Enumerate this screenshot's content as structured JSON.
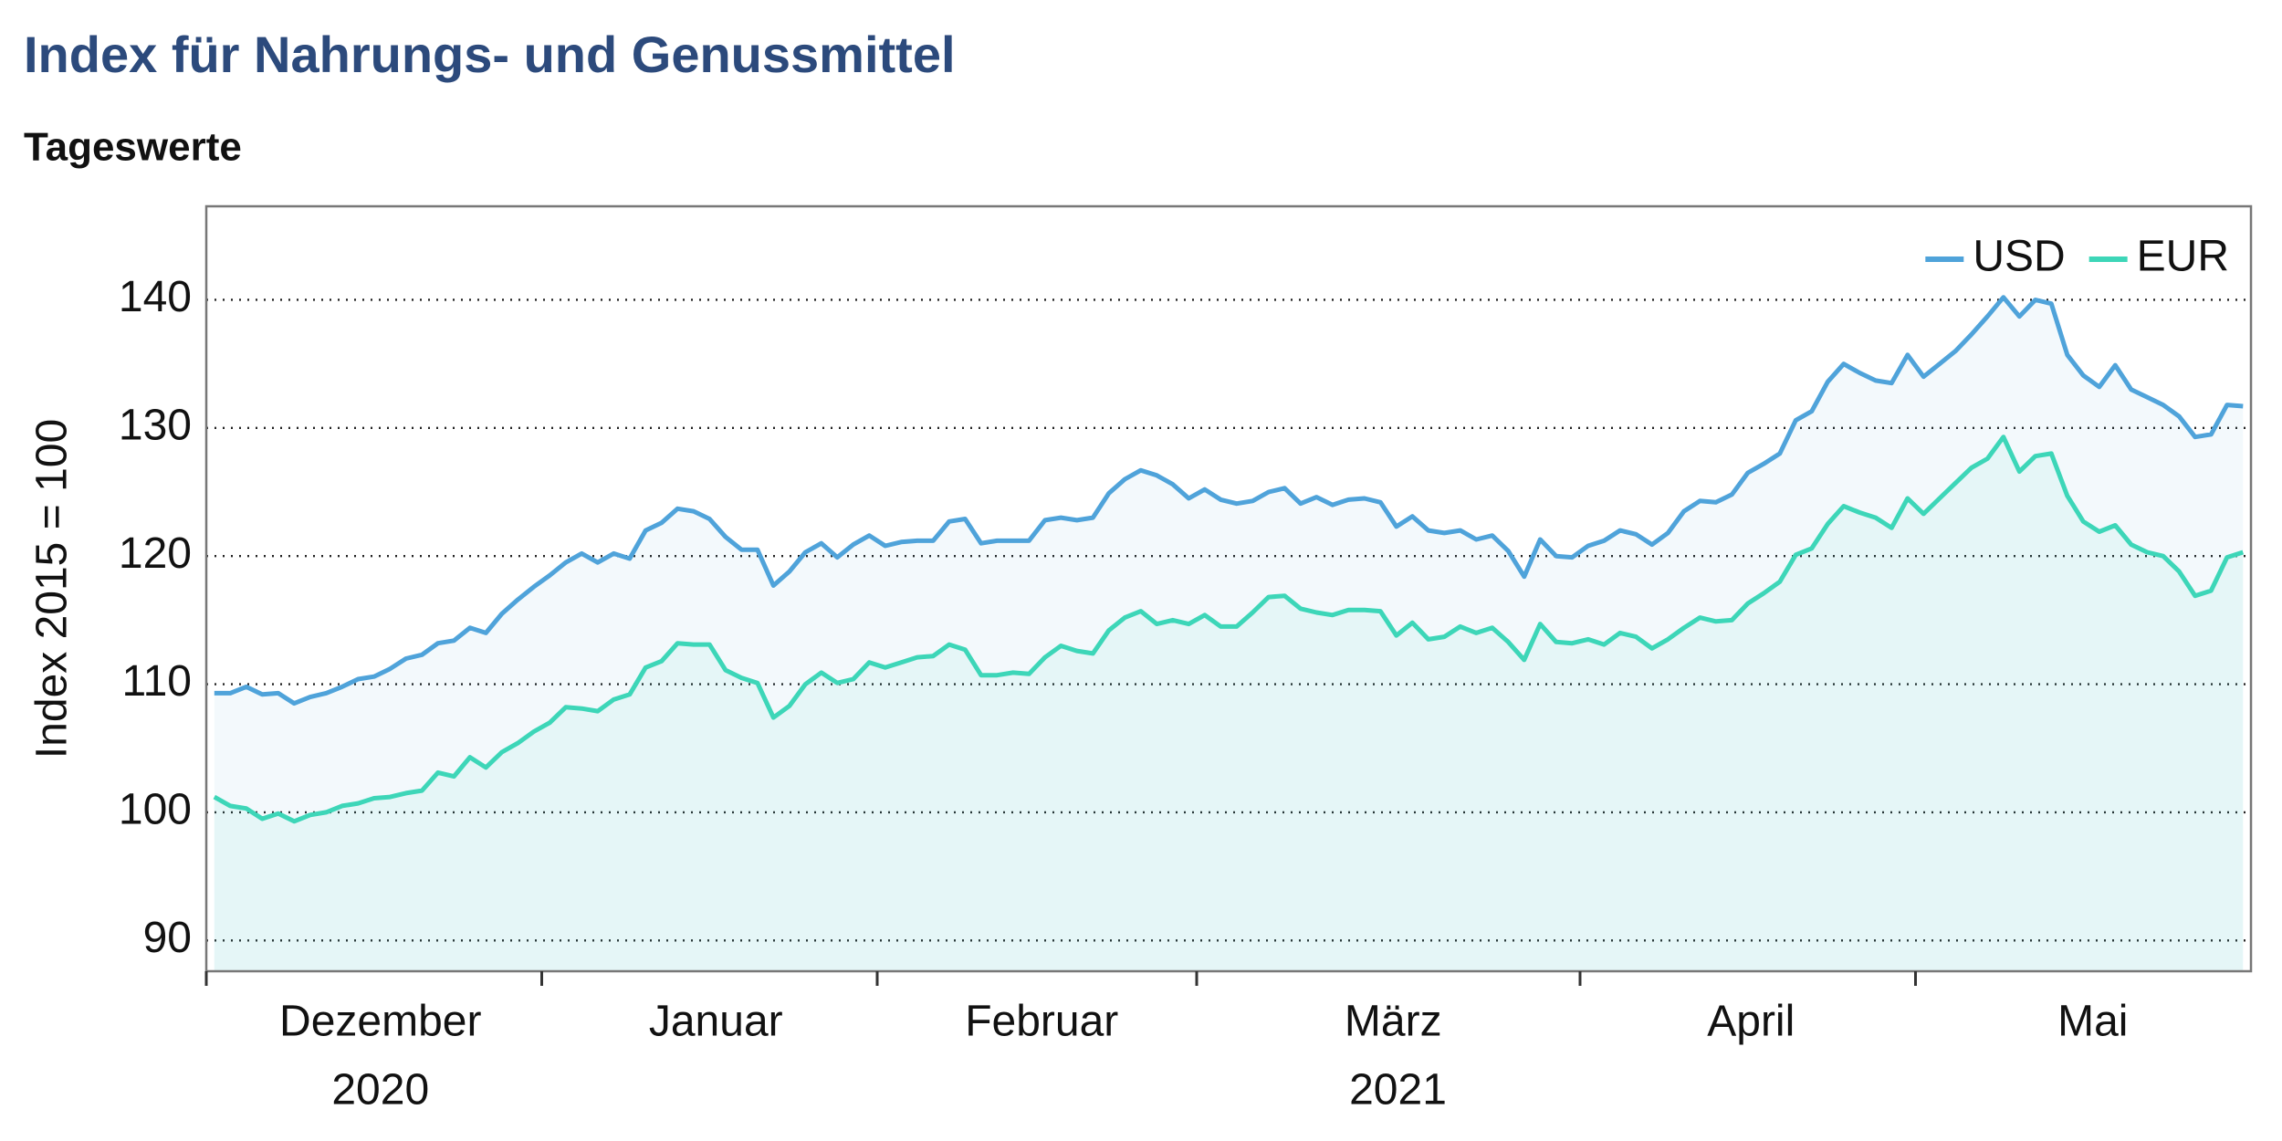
{
  "chart_data": {
    "type": "line",
    "title": "Index für Nahrungs- und Genussmittel",
    "subtitle": "Tageswerte",
    "y_label": "Index 2015 = 100",
    "ylim": [
      87.6,
      147.3
    ],
    "yticks": [
      90,
      100,
      110,
      120,
      130,
      140
    ],
    "xlim": [
      -0.5,
      127.5
    ],
    "xticks": [
      -0.5,
      20.5,
      41.5,
      61.5,
      85.5,
      106.5
    ],
    "xlabels": [
      {
        "value": 10.4,
        "label": "Dezember"
      },
      {
        "value": 31.4,
        "label": "Januar"
      },
      {
        "value": 51.8,
        "label": "Februar"
      },
      {
        "value": 73.8,
        "label": "März"
      },
      {
        "value": 96.2,
        "label": "April"
      },
      {
        "value": 117.6,
        "label": "Mai"
      }
    ],
    "year_labels": [
      {
        "value": 10.4,
        "label": "2020"
      },
      {
        "value": 74.1,
        "label": "2021"
      }
    ],
    "grid": true,
    "legend": "upper right",
    "series": [
      {
        "name": "USD",
        "color": "#4fa3da",
        "fill": "#4fa3da",
        "values": [
          109.3,
          109.3,
          109.8,
          109.2,
          109.3,
          108.5,
          109,
          109.3,
          109.8,
          110.4,
          110.6,
          111.2,
          112,
          112.3,
          113.2,
          113.4,
          114.4,
          114,
          115.5,
          116.6,
          117.6,
          118.5,
          119.5,
          120.2,
          119.5,
          120.2,
          119.8,
          122,
          122.6,
          123.7,
          123.5,
          122.9,
          121.5,
          120.5,
          120.5,
          117.7,
          118.8,
          120.3,
          121,
          119.9,
          120.9,
          121.6,
          120.8,
          121.1,
          121.2,
          121.2,
          122.7,
          122.9,
          121,
          121.2,
          121.2,
          121.2,
          122.8,
          123,
          122.8,
          123,
          124.9,
          126,
          126.7,
          126.3,
          125.6,
          124.5,
          125.2,
          124.4,
          124.1,
          124.3,
          125,
          125.3,
          124.1,
          124.6,
          124,
          124.4,
          124.5,
          124.2,
          122.3,
          123.1,
          122,
          121.8,
          122,
          121.3,
          121.6,
          120.4,
          118.4,
          121.3,
          120,
          119.9,
          120.8,
          121.2,
          122,
          121.7,
          120.9,
          121.8,
          123.5,
          124.3,
          124.2,
          124.8,
          126.5,
          127.2,
          128,
          130.6,
          131.3,
          133.6,
          135,
          134.3,
          133.7,
          133.5,
          135.7,
          134,
          135,
          136,
          137.3,
          138.7,
          140.2,
          138.7,
          140,
          139.7,
          135.7,
          134.1,
          133.2,
          134.9,
          133,
          132.4,
          131.8,
          130.9,
          129.3,
          129.5,
          131.8,
          131.7
        ]
      },
      {
        "name": "EUR",
        "color": "#3dd6b8",
        "fill": "#3dd6b8",
        "values": [
          101.2,
          100.5,
          100.3,
          99.5,
          99.9,
          99.3,
          99.8,
          100,
          100.5,
          100.7,
          101.1,
          101.2,
          101.5,
          101.7,
          103.1,
          102.8,
          104.3,
          103.5,
          104.7,
          105.4,
          106.3,
          107,
          108.2,
          108.1,
          107.9,
          108.8,
          109.2,
          111.3,
          111.8,
          113.2,
          113.1,
          113.1,
          111.1,
          110.5,
          110.1,
          107.4,
          108.3,
          110,
          110.9,
          110.1,
          110.4,
          111.7,
          111.3,
          111.7,
          112.1,
          112.2,
          113.1,
          112.7,
          110.7,
          110.7,
          110.9,
          110.8,
          112.1,
          113,
          112.6,
          112.4,
          114.2,
          115.2,
          115.7,
          114.7,
          115,
          114.7,
          115.4,
          114.5,
          114.5,
          115.6,
          116.8,
          116.9,
          115.9,
          115.6,
          115.4,
          115.8,
          115.8,
          115.7,
          113.8,
          114.8,
          113.5,
          113.7,
          114.5,
          114,
          114.4,
          113.3,
          111.9,
          114.7,
          113.3,
          113.2,
          113.5,
          113.1,
          114,
          113.7,
          112.8,
          113.5,
          114.4,
          115.2,
          114.9,
          115,
          116.3,
          117.1,
          118,
          120.1,
          120.6,
          122.5,
          123.9,
          123.4,
          123,
          122.2,
          124.5,
          123.3,
          124.5,
          125.7,
          126.9,
          127.6,
          129.3,
          126.6,
          127.8,
          128,
          124.7,
          122.7,
          121.9,
          122.4,
          120.9,
          120.3,
          120,
          118.8,
          116.9,
          117.3,
          119.9,
          120.3
        ]
      }
    ]
  }
}
